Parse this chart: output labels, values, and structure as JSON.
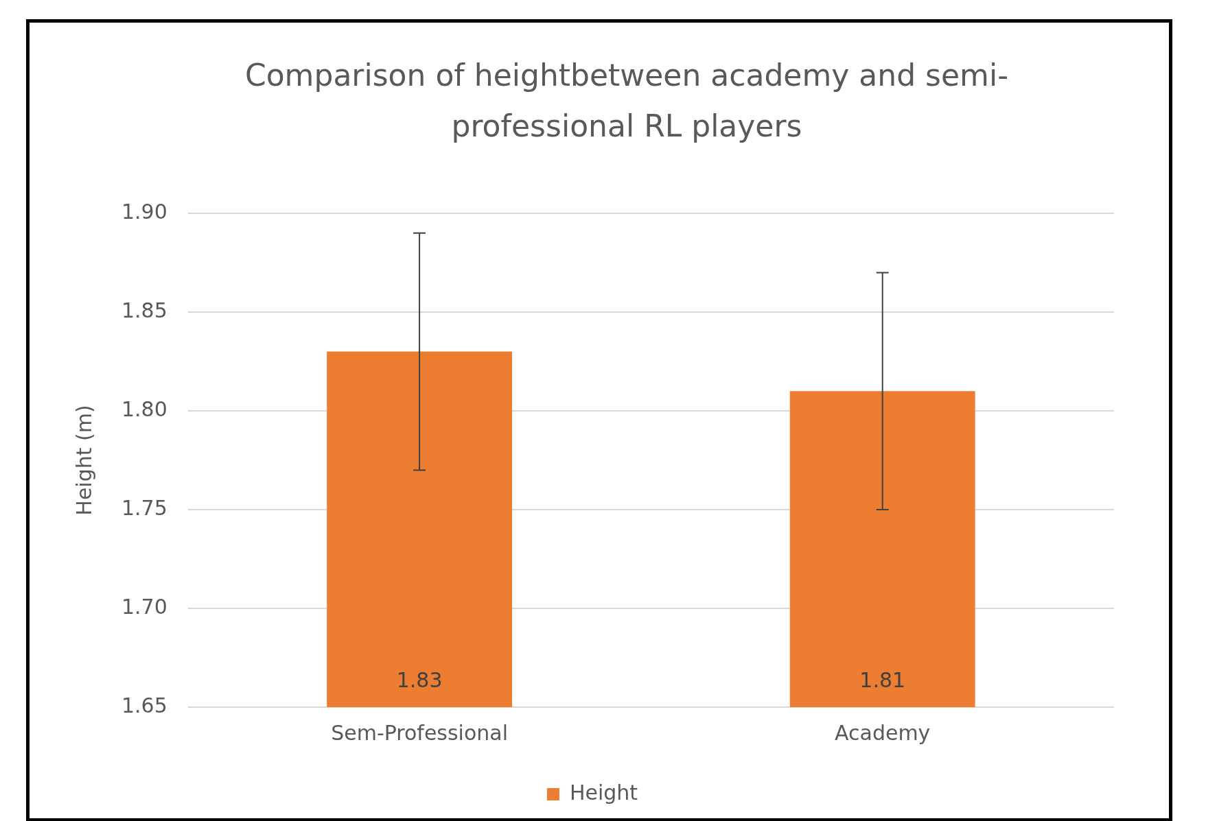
{
  "chart_data": {
    "type": "bar",
    "title": "Comparison of heightbetween academy and semi-professional RL players",
    "ylabel": "Height (m)",
    "categories": [
      "Sem-Professional",
      "Academy"
    ],
    "series": [
      {
        "name": "Height",
        "color": "#ed7d31",
        "values": [
          1.83,
          1.81
        ],
        "errors": [
          [
            1.77,
            1.89
          ],
          [
            1.75,
            1.87
          ]
        ]
      }
    ],
    "ylim": [
      1.65,
      1.9
    ],
    "yticks": [
      {
        "value": 1.65,
        "label": "1.65"
      },
      {
        "value": 1.7,
        "label": "1.70"
      },
      {
        "value": 1.75,
        "label": "1.75"
      },
      {
        "value": 1.8,
        "label": "1.80"
      },
      {
        "value": 1.85,
        "label": "1.85"
      },
      {
        "value": 1.9,
        "label": "1.90"
      }
    ],
    "grid": "y",
    "legend": "bottom",
    "data_labels": true
  }
}
